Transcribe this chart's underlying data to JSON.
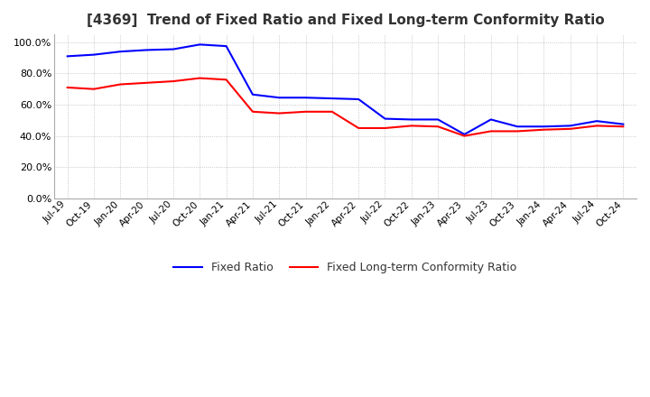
{
  "title": "[4369]  Trend of Fixed Ratio and Fixed Long-term Conformity Ratio",
  "title_fontsize": 11,
  "background_color": "#ffffff",
  "plot_background_color": "#ffffff",
  "grid_color": "#aaaaaa",
  "fixed_ratio_color": "#0000ff",
  "fixed_lt_color": "#ff0000",
  "legend_labels": [
    "Fixed Ratio",
    "Fixed Long-term Conformity Ratio"
  ],
  "x_labels": [
    "Jul-19",
    "Oct-19",
    "Jan-20",
    "Apr-20",
    "Jul-20",
    "Oct-20",
    "Jan-21",
    "Apr-21",
    "Jul-21",
    "Oct-21",
    "Jan-22",
    "Apr-22",
    "Jul-22",
    "Oct-22",
    "Jan-23",
    "Apr-23",
    "Jul-23",
    "Oct-23",
    "Jan-24",
    "Apr-24",
    "Jul-24",
    "Oct-24"
  ],
  "fixed_ratio": [
    0.91,
    0.92,
    0.94,
    0.95,
    0.955,
    0.985,
    0.975,
    0.665,
    0.645,
    0.645,
    0.64,
    0.635,
    0.51,
    0.505,
    0.505,
    0.41,
    0.505,
    0.46,
    0.46,
    0.465,
    0.495,
    0.475
  ],
  "fixed_lt_ratio": [
    0.71,
    0.7,
    0.73,
    0.74,
    0.75,
    0.77,
    0.76,
    0.555,
    0.545,
    0.555,
    0.555,
    0.45,
    0.45,
    0.465,
    0.46,
    0.4,
    0.43,
    0.43,
    0.44,
    0.445,
    0.465,
    0.46
  ],
  "ylim": [
    0.0,
    1.05
  ],
  "yticks": [
    0.0,
    0.2,
    0.4,
    0.6,
    0.8,
    1.0
  ]
}
